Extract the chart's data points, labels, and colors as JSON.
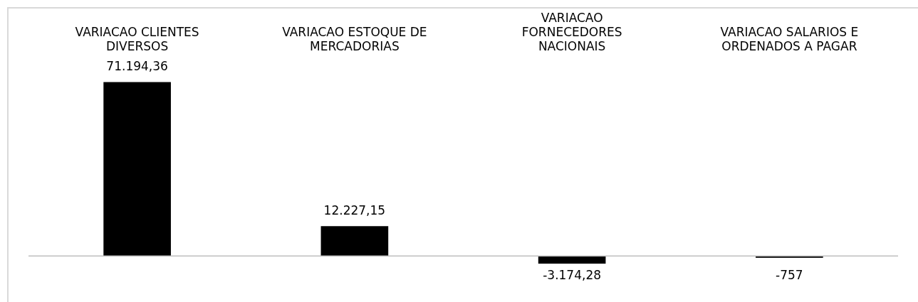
{
  "chart_data": {
    "type": "bar",
    "tick_labels": "x",
    "categories": [
      "VARIACAO CLIENTES DIVERSOS",
      "VARIACAO ESTOQUE DE MERCADORIAS",
      "VARIACAO FORNECEDORES NACIONAIS",
      "VARIACAO SALARIOS E ORDENADOS A PAGAR"
    ],
    "values": [
      71194.36,
      12227.15,
      -3174.28,
      -757
    ],
    "value_labels": [
      "71.194,36",
      "12.227,15",
      "-3.174,28",
      "-757"
    ],
    "color": "#000000",
    "grid": false,
    "legend": false
  }
}
